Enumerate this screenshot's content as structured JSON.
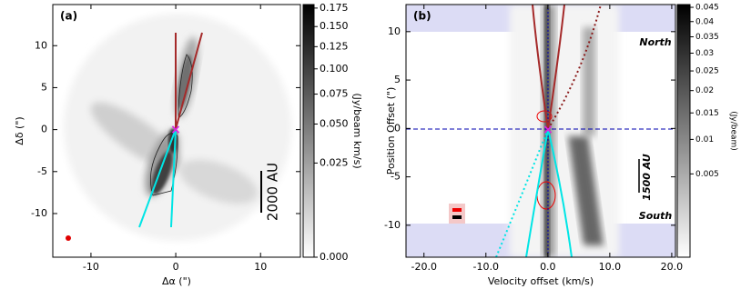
{
  "chart_data": [
    {
      "type": "image",
      "label": "(a)",
      "xlabel": "Δα (\")",
      "ylabel": "Δδ (\")",
      "xlim": [
        -14.5,
        14.7
      ],
      "ylim": [
        -15.2,
        14.9
      ],
      "xticks": [
        -10,
        0,
        10
      ],
      "yticks": [
        -10,
        -5,
        0,
        5,
        10
      ],
      "colorbar": {
        "label": "(Jy/beam km/s)",
        "scale": "sqrt",
        "lim": [
          0,
          0.18
        ],
        "ticks": [
          {
            "value": 0,
            "label": "0.000"
          },
          {
            "value": 0.025,
            "label": "0.025"
          },
          {
            "value": 0.05,
            "label": "0.050"
          },
          {
            "value": 0.075,
            "label": "0.075"
          },
          {
            "value": 0.1,
            "label": "0.100"
          },
          {
            "value": 0.125,
            "label": "0.125"
          },
          {
            "value": 0.15,
            "label": "0.150"
          },
          {
            "value": 0.175,
            "label": "0.175"
          }
        ]
      },
      "annotations": [
        "2000 AU"
      ]
    },
    {
      "type": "image",
      "label": "(b)",
      "xlabel": "Velocity offset (km/s)",
      "ylabel": "Position Offset (\")",
      "xlim": [
        -22.9,
        20.6
      ],
      "ylim": [
        -13.3,
        12.8
      ],
      "xticks": [
        {
          "value": -20,
          "label": "-20.0"
        },
        {
          "value": -10,
          "label": "-10.0"
        },
        {
          "value": 0,
          "label": "0.0"
        },
        {
          "value": 10,
          "label": "10.0"
        },
        {
          "value": 20,
          "label": "20.0"
        }
      ],
      "yticks": [
        -10,
        -5,
        0,
        5,
        10
      ],
      "colorbar": {
        "label": "(Jy/beam)",
        "scale": "sqrt",
        "lim": [
          0,
          0.046
        ],
        "ticks": [
          0.005,
          0.01,
          0.015,
          0.02,
          0.025,
          0.03,
          0.035,
          0.04,
          0.045
        ]
      },
      "annotations": [
        "North",
        "South",
        "1500 AU"
      ]
    }
  ]
}
